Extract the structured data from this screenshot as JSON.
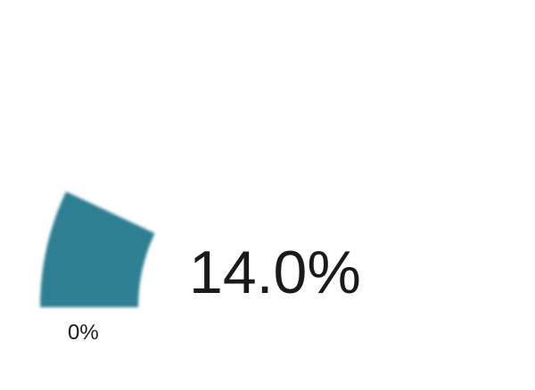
{
  "chart_data": {
    "type": "gauge",
    "value": 14.0,
    "value_label": "14.0%",
    "min_label": "0%",
    "range": [
      0,
      100
    ],
    "fill_color": "#2f7f92"
  }
}
